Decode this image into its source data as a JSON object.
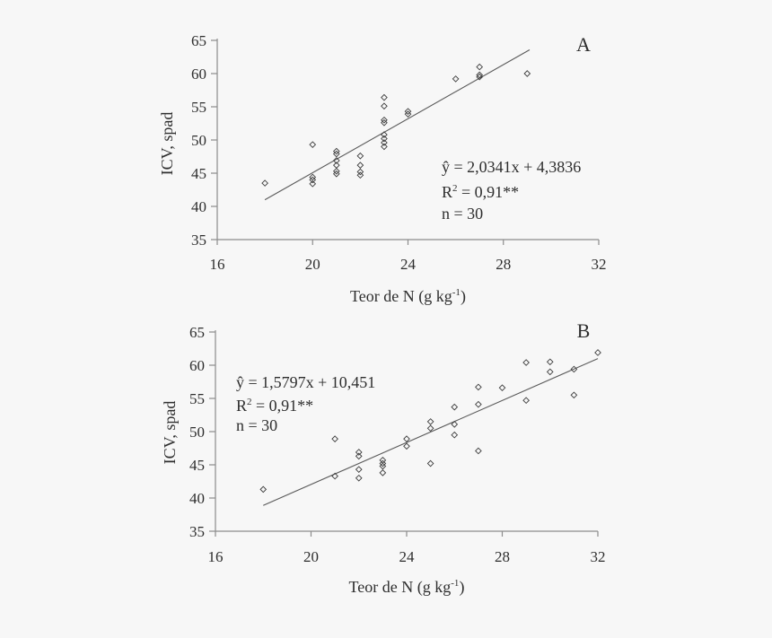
{
  "page": {
    "background": "#f7f7f7",
    "text_color": "#2e2e2e",
    "axis_color": "#8c8c8c",
    "marker_color": "#3c3c3c",
    "line_color": "#5a5a5a"
  },
  "chart_data": [
    {
      "type": "scatter",
      "panel_label": "A",
      "ylabel": "ICV, spad",
      "xlabel_main": "Teor de N (g kg",
      "xlabel_sup": "-1",
      "xlabel_close": ")",
      "xlim": [
        16,
        32
      ],
      "ylim": [
        35,
        65
      ],
      "xticks": [
        "16",
        "20",
        "24",
        "28",
        "32"
      ],
      "yticks": [
        "35",
        "40",
        "45",
        "50",
        "55",
        "60",
        "65"
      ],
      "annotation": {
        "equation": "ŷ = 2,0341x + 4,3836",
        "r2_base": "R",
        "r2_sup": "2",
        "r2_rest": " = 0,91**",
        "n": "n = 30"
      },
      "regression": {
        "slope": 2.0341,
        "intercept": 4.3836,
        "x_start": 18,
        "x_end": 29.1
      },
      "points": [
        [
          18,
          43.5
        ],
        [
          20,
          49.3
        ],
        [
          20,
          44.4
        ],
        [
          20,
          44.0
        ],
        [
          20,
          43.4
        ],
        [
          21,
          48.3
        ],
        [
          21,
          47.9
        ],
        [
          21,
          46.9
        ],
        [
          21,
          46.2
        ],
        [
          21,
          45.3
        ],
        [
          21,
          44.9
        ],
        [
          22,
          47.6
        ],
        [
          22,
          46.2
        ],
        [
          22,
          45.2
        ],
        [
          22,
          44.7
        ],
        [
          23,
          56.4
        ],
        [
          23,
          55.1
        ],
        [
          23,
          53.0
        ],
        [
          23,
          52.6
        ],
        [
          23,
          50.8
        ],
        [
          23,
          50.2
        ],
        [
          23,
          49.6
        ],
        [
          23,
          49.0
        ],
        [
          24,
          54.3
        ],
        [
          24,
          53.9
        ],
        [
          26,
          59.2
        ],
        [
          27,
          61.0
        ],
        [
          27,
          59.8
        ],
        [
          27,
          59.5
        ],
        [
          29,
          60.0
        ]
      ]
    },
    {
      "type": "scatter",
      "panel_label": "B",
      "ylabel": "ICV, spad",
      "xlabel_main": "Teor de N (g kg",
      "xlabel_sup": "-1",
      "xlabel_close": ")",
      "xlim": [
        16,
        32
      ],
      "ylim": [
        35,
        65
      ],
      "xticks": [
        "16",
        "20",
        "24",
        "28",
        "32"
      ],
      "yticks": [
        "35",
        "40",
        "45",
        "50",
        "55",
        "60",
        "65"
      ],
      "annotation": {
        "equation": "ŷ = 1,5797x + 10,451",
        "r2_base": "R",
        "r2_sup": "2",
        "r2_rest": " = 0,91**",
        "n": "n = 30"
      },
      "regression": {
        "slope": 1.5797,
        "intercept": 10.451,
        "x_start": 18,
        "x_end": 32
      },
      "points": [
        [
          18,
          41.3
        ],
        [
          21,
          48.9
        ],
        [
          21,
          43.3
        ],
        [
          22,
          46.9
        ],
        [
          22,
          46.3
        ],
        [
          22,
          44.3
        ],
        [
          22,
          43.0
        ],
        [
          23,
          45.7
        ],
        [
          23,
          45.2
        ],
        [
          23,
          44.8
        ],
        [
          23,
          43.8
        ],
        [
          24,
          48.9
        ],
        [
          24,
          47.8
        ],
        [
          25,
          51.5
        ],
        [
          25,
          50.5
        ],
        [
          25,
          45.2
        ],
        [
          26,
          53.7
        ],
        [
          26,
          51.1
        ],
        [
          26,
          49.5
        ],
        [
          27,
          56.7
        ],
        [
          27,
          54.1
        ],
        [
          27,
          47.1
        ],
        [
          28,
          56.6
        ],
        [
          29,
          60.4
        ],
        [
          29,
          54.7
        ],
        [
          30,
          60.5
        ],
        [
          30,
          59.0
        ],
        [
          31,
          59.4
        ],
        [
          31,
          55.5
        ],
        [
          32,
          61.9
        ]
      ]
    }
  ]
}
